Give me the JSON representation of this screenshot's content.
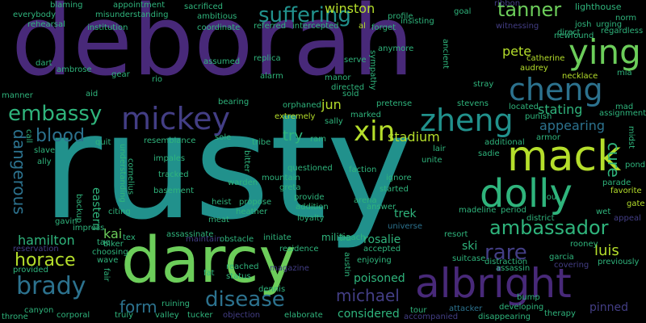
{
  "background": "#000000",
  "palette": {
    "purple": "#482979",
    "indigo": "#433e85",
    "blue": "#2c728e",
    "teal": "#21918c",
    "green": "#2fb47c",
    "lime": "#6ccd5a",
    "yellow": "#b5de2b",
    "gray": "#3b4a6b"
  },
  "words": [
    {
      "text": "rusty",
      "size": 180
    },
    {
      "text": "deborah",
      "size": 120
    },
    {
      "text": "darcy",
      "size": 78
    },
    {
      "text": "albright",
      "size": 50
    },
    {
      "text": "mack",
      "size": 52
    },
    {
      "text": "dolly",
      "size": 48
    },
    {
      "text": "ying",
      "size": 42
    },
    {
      "text": "cheng",
      "size": 38
    },
    {
      "text": "zheng",
      "size": 38
    },
    {
      "text": "mickey",
      "size": 38
    },
    {
      "text": "xin",
      "size": 34
    },
    {
      "text": "suffering",
      "size": 26
    },
    {
      "text": "tanner",
      "size": 24
    },
    {
      "text": "embassy",
      "size": 26
    },
    {
      "text": "blood",
      "size": 22
    },
    {
      "text": "brady",
      "size": 30
    },
    {
      "text": "horace",
      "size": 22
    },
    {
      "text": "disease",
      "size": 26
    },
    {
      "text": "ambassador",
      "size": 24
    },
    {
      "text": "rare",
      "size": 26
    },
    {
      "text": "luis",
      "size": 18
    },
    {
      "text": "michael",
      "size": 20
    },
    {
      "text": "form",
      "size": 20
    },
    {
      "text": "dangerous",
      "size": 20
    },
    {
      "text": "cure",
      "size": 20
    },
    {
      "text": "appearing",
      "size": 16
    },
    {
      "text": "stating",
      "size": 16
    },
    {
      "text": "pete",
      "size": 16
    },
    {
      "text": "winston",
      "size": 16
    },
    {
      "text": "jun",
      "size": 16
    },
    {
      "text": "try",
      "size": 18
    },
    {
      "text": "stadium",
      "size": 16
    },
    {
      "text": "hamilton",
      "size": 16
    },
    {
      "text": "kai",
      "size": 16
    },
    {
      "text": "rosalie",
      "size": 14
    },
    {
      "text": "trek",
      "size": 14
    },
    {
      "text": "poisoned",
      "size": 14
    },
    {
      "text": "considered",
      "size": 14
    },
    {
      "text": "ski",
      "size": 14
    },
    {
      "text": "pinned",
      "size": 14
    },
    {
      "text": "eastern",
      "size": 14
    },
    {
      "text": "militia",
      "size": 12
    },
    {
      "text": "lighthouse",
      "size": 11
    },
    {
      "text": "catherine",
      "size": 10
    },
    {
      "text": "audrey",
      "size": 10
    },
    {
      "text": "necklace",
      "size": 10
    },
    {
      "text": "mia",
      "size": 10
    },
    {
      "text": "sacrificed",
      "size": 10
    },
    {
      "text": "ambitious",
      "size": 10
    },
    {
      "text": "coordinate",
      "size": 10
    },
    {
      "text": "misunderstanding",
      "size": 10
    },
    {
      "text": "appointment",
      "size": 10
    },
    {
      "text": "blaming",
      "size": 10
    },
    {
      "text": "everybody",
      "size": 10
    },
    {
      "text": "rehearsal",
      "size": 10
    },
    {
      "text": "institution",
      "size": 10
    },
    {
      "text": "dart",
      "size": 10
    },
    {
      "text": "ambrose",
      "size": 10
    },
    {
      "text": "gear",
      "size": 10
    },
    {
      "text": "rio",
      "size": 10
    },
    {
      "text": "aid",
      "size": 10
    },
    {
      "text": "manner",
      "size": 10
    },
    {
      "text": "replica",
      "size": 10
    },
    {
      "text": "alarm",
      "size": 10
    },
    {
      "text": "assumed",
      "size": 10
    },
    {
      "text": "referred",
      "size": 10
    },
    {
      "text": "intercepted",
      "size": 10
    },
    {
      "text": "profile",
      "size": 10
    },
    {
      "text": "goal",
      "size": 10
    },
    {
      "text": "insisting",
      "size": 10
    },
    {
      "text": "forget",
      "size": 10
    },
    {
      "text": "al",
      "size": 10
    },
    {
      "text": "anymore",
      "size": 10
    },
    {
      "text": "serve",
      "size": 10
    },
    {
      "text": "sympathy",
      "size": 10
    },
    {
      "text": "manor",
      "size": 10
    },
    {
      "text": "directed",
      "size": 10
    },
    {
      "text": "sold",
      "size": 10
    },
    {
      "text": "bearing",
      "size": 10
    },
    {
      "text": "orphaned",
      "size": 10
    },
    {
      "text": "extremely",
      "size": 10
    },
    {
      "text": "marked",
      "size": 10
    },
    {
      "text": "sally",
      "size": 10
    },
    {
      "text": "pretense",
      "size": 10
    },
    {
      "text": "stevens",
      "size": 10
    },
    {
      "text": "located",
      "size": 10
    },
    {
      "text": "mad",
      "size": 10
    },
    {
      "text": "punish",
      "size": 10
    },
    {
      "text": "assignment",
      "size": 10
    },
    {
      "text": "additional",
      "size": 10
    },
    {
      "text": "armor",
      "size": 10
    },
    {
      "text": "midst",
      "size": 10
    },
    {
      "text": "lair",
      "size": 10
    },
    {
      "text": "sadie",
      "size": 10
    },
    {
      "text": "unite",
      "size": 10
    },
    {
      "text": "ignore",
      "size": 10
    },
    {
      "text": "faction",
      "size": 10
    },
    {
      "text": "started",
      "size": 10
    },
    {
      "text": "arena",
      "size": 10
    },
    {
      "text": "answer",
      "size": 10
    },
    {
      "text": "period",
      "size": 10
    },
    {
      "text": "madeline",
      "size": 10
    },
    {
      "text": "district",
      "size": 10
    },
    {
      "text": "lou",
      "size": 10
    },
    {
      "text": "favorite",
      "size": 10
    },
    {
      "text": "parade",
      "size": 10
    },
    {
      "text": "gate",
      "size": 10
    },
    {
      "text": "pond",
      "size": 10
    },
    {
      "text": "wet",
      "size": 10
    },
    {
      "text": "appeal",
      "size": 10
    },
    {
      "text": "rooney",
      "size": 10
    },
    {
      "text": "garcia",
      "size": 10
    },
    {
      "text": "previously",
      "size": 10
    },
    {
      "text": "covering",
      "size": 10
    },
    {
      "text": "universe",
      "size": 10
    },
    {
      "text": "resort",
      "size": 10
    },
    {
      "text": "suitcase",
      "size": 10
    },
    {
      "text": "distraction",
      "size": 10
    },
    {
      "text": "assassin",
      "size": 10
    },
    {
      "text": "beach",
      "size": 10
    },
    {
      "text": "accepted",
      "size": 10
    },
    {
      "text": "enjoying",
      "size": 10
    },
    {
      "text": "austin",
      "size": 10
    },
    {
      "text": "residence",
      "size": 10
    },
    {
      "text": "loyalty",
      "size": 10
    },
    {
      "text": "provide",
      "size": 10
    },
    {
      "text": "addition",
      "size": 10
    },
    {
      "text": "propose",
      "size": 10
    },
    {
      "text": "heather",
      "size": 10
    },
    {
      "text": "initiate",
      "size": 10
    },
    {
      "text": "heist",
      "size": 10
    },
    {
      "text": "warden",
      "size": 10
    },
    {
      "text": "mountain",
      "size": 10
    },
    {
      "text": "greta",
      "size": 10
    },
    {
      "text": "questioned",
      "size": 10
    },
    {
      "text": "tribe",
      "size": 10
    },
    {
      "text": "ram",
      "size": 10
    },
    {
      "text": "sole",
      "size": 10
    },
    {
      "text": "bitter",
      "size": 10
    },
    {
      "text": "resemblance",
      "size": 10
    },
    {
      "text": "impales",
      "size": 10
    },
    {
      "text": "tracked",
      "size": 10
    },
    {
      "text": "basement",
      "size": 10
    },
    {
      "text": "cornelius",
      "size": 10
    },
    {
      "text": "understanding",
      "size": 10
    },
    {
      "text": "quit",
      "size": 10
    },
    {
      "text": "slave",
      "size": 10
    },
    {
      "text": "ally",
      "size": 10
    },
    {
      "text": "call",
      "size": 10
    },
    {
      "text": "backup",
      "size": 10
    },
    {
      "text": "citing",
      "size": 10
    },
    {
      "text": "gavin",
      "size": 10
    },
    {
      "text": "impress",
      "size": 10
    },
    {
      "text": "reservation",
      "size": 10
    },
    {
      "text": "provided",
      "size": 10
    },
    {
      "text": "tae",
      "size": 10
    },
    {
      "text": "biker",
      "size": 10
    },
    {
      "text": "tex",
      "size": 10
    },
    {
      "text": "choosing",
      "size": 10
    },
    {
      "text": "wave",
      "size": 10
    },
    {
      "text": "fair",
      "size": 10
    },
    {
      "text": "meat",
      "size": 10
    },
    {
      "text": "assassinate",
      "size": 10
    },
    {
      "text": "maintain",
      "size": 10
    },
    {
      "text": "obstacle",
      "size": 10
    },
    {
      "text": "reached",
      "size": 10
    },
    {
      "text": "status",
      "size": 10
    },
    {
      "text": "fat",
      "size": 10
    },
    {
      "text": "magazine",
      "size": 10
    },
    {
      "text": "dennis",
      "size": 10
    },
    {
      "text": "objection",
      "size": 10
    },
    {
      "text": "elaborate",
      "size": 10
    },
    {
      "text": "tucker",
      "size": 10
    },
    {
      "text": "valley",
      "size": 10
    },
    {
      "text": "ruining",
      "size": 10
    },
    {
      "text": "truly",
      "size": 10
    },
    {
      "text": "corporal",
      "size": 10
    },
    {
      "text": "canyon",
      "size": 10
    },
    {
      "text": "throne",
      "size": 10
    },
    {
      "text": "tour",
      "size": 10
    },
    {
      "text": "accompanied",
      "size": 10
    },
    {
      "text": "attacker",
      "size": 10
    },
    {
      "text": "disappearing",
      "size": 10
    },
    {
      "text": "developing",
      "size": 10
    },
    {
      "text": "therapy",
      "size": 10
    },
    {
      "text": "bump",
      "size": 10
    },
    {
      "text": "ribbon",
      "size": 10
    },
    {
      "text": "witnessing",
      "size": 10
    },
    {
      "text": "josh",
      "size": 10
    },
    {
      "text": "direct",
      "size": 10
    },
    {
      "text": "newfound",
      "size": 10
    },
    {
      "text": "urging",
      "size": 10
    },
    {
      "text": "regardless",
      "size": 10
    },
    {
      "text": "norm",
      "size": 10
    },
    {
      "text": "ancient",
      "size": 10
    },
    {
      "text": "stray",
      "size": 10
    }
  ]
}
